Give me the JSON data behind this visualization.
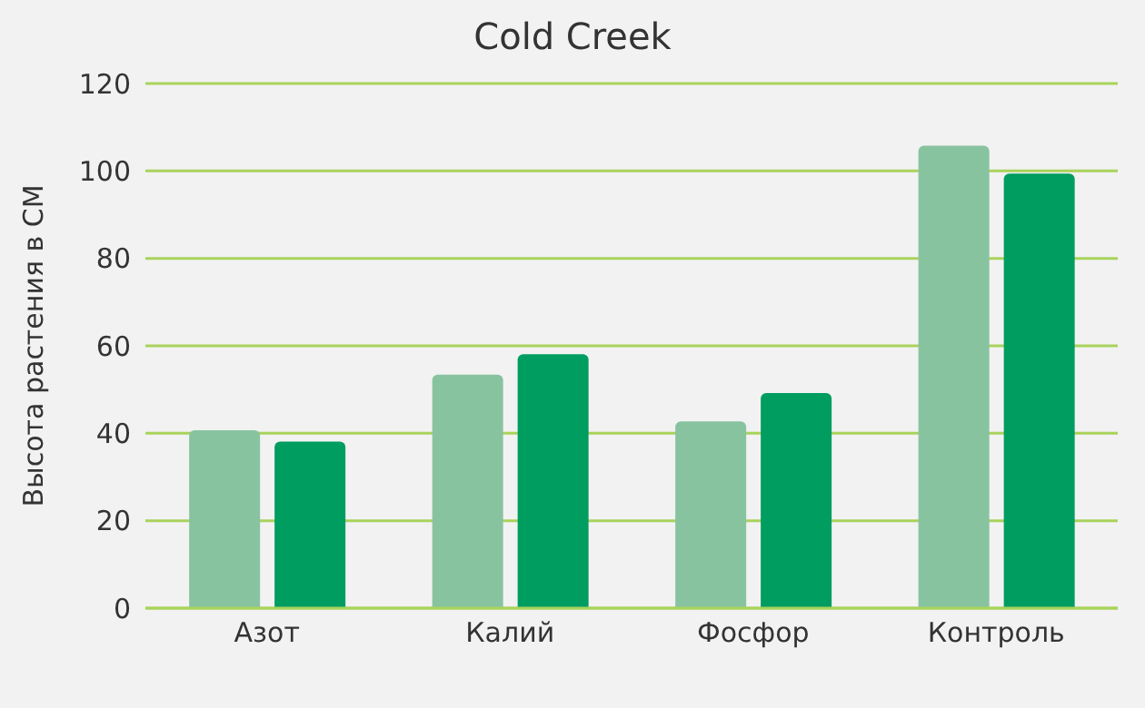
{
  "chart_data": {
    "type": "bar",
    "title": "Cold Creek",
    "ylabel": "Высота растения в СМ",
    "categories": [
      "Азот",
      "Калий",
      "Фосфор",
      "Контроль"
    ],
    "series": [
      {
        "color": "#88c3a0",
        "values": [
          40.7,
          53.4,
          42.7,
          105.8
        ]
      },
      {
        "color": "#009d60",
        "values": [
          38.1,
          58.1,
          49.2,
          99.4
        ]
      }
    ],
    "ylim": [
      0,
      120
    ],
    "yticks": [
      0,
      20,
      40,
      60,
      80,
      100,
      120
    ],
    "grid": "y"
  }
}
